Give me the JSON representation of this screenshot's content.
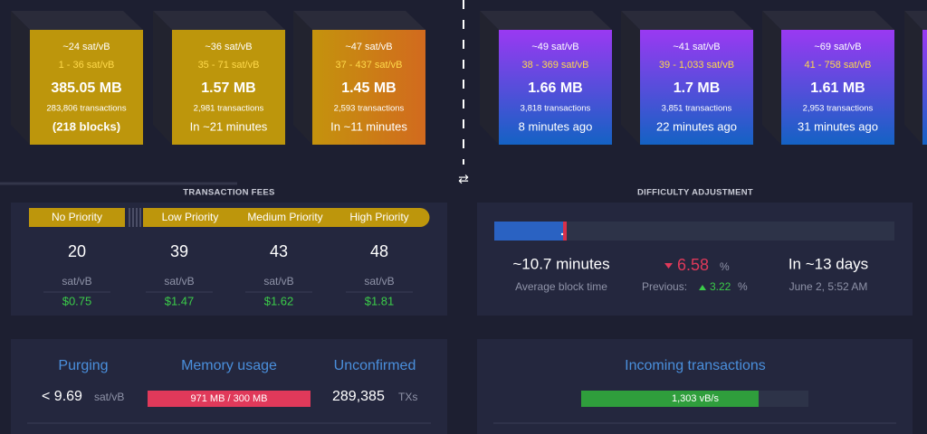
{
  "mempool_blocks": [
    {
      "fee": "~24 sat/vB",
      "range": "1 - 36 sat/vB",
      "size": "385.05 MB",
      "transactions": "283,806 transactions",
      "footer": "(218 blocks)"
    },
    {
      "fee": "~36 sat/vB",
      "range": "35 - 71 sat/vB",
      "size": "1.57 MB",
      "transactions": "2,981 transactions",
      "footer": "In ~21 minutes"
    },
    {
      "fee": "~47 sat/vB",
      "range": "37 - 437 sat/vB",
      "size": "1.45 MB",
      "transactions": "2,593 transactions",
      "footer": "In ~11 minutes"
    }
  ],
  "blocks": [
    {
      "fee": "~49 sat/vB",
      "range": "38 - 369 sat/vB",
      "size": "1.66 MB",
      "transactions": "3,818 transactions",
      "footer": "8 minutes ago"
    },
    {
      "fee": "~41 sat/vB",
      "range": "39 - 1,033 sat/vB",
      "size": "1.7 MB",
      "transactions": "3,851 transactions",
      "footer": "22 minutes ago"
    },
    {
      "fee": "~69 sat/vB",
      "range": "41 - 758 sat/vB",
      "size": "1.61 MB",
      "transactions": "2,953 transactions",
      "footer": "31 minutes ago"
    }
  ],
  "transaction_fees": {
    "title": "TRANSACTION FEES",
    "priorities": [
      "No Priority",
      "Low Priority",
      "Medium Priority",
      "High Priority"
    ],
    "fees": [
      "20",
      "39",
      "43",
      "48"
    ],
    "unit": "sat/vB",
    "usd": [
      "$0.75",
      "$1.47",
      "$1.62",
      "$1.81"
    ]
  },
  "difficulty": {
    "title": "DIFFICULTY ADJUSTMENT",
    "block_time": "~10.7 minutes",
    "block_time_label": "Average block time",
    "change": "6.58",
    "change_unit": "%",
    "previous_label": "Previous:",
    "previous": "3.22",
    "previous_unit": "%",
    "eta": "In ~13 days",
    "eta_date": "June 2, 5:52 AM"
  },
  "mempool": {
    "purging_label": "Purging",
    "purging": "< 9.69",
    "purging_unit": "sat/vB",
    "memory_label": "Memory usage",
    "memory": "971 MB / 300 MB",
    "unconfirmed_label": "Unconfirmed",
    "unconfirmed": "289,385",
    "unconfirmed_unit": "TXs"
  },
  "incoming": {
    "label": "Incoming transactions",
    "rate": "1,303 vB/s"
  }
}
